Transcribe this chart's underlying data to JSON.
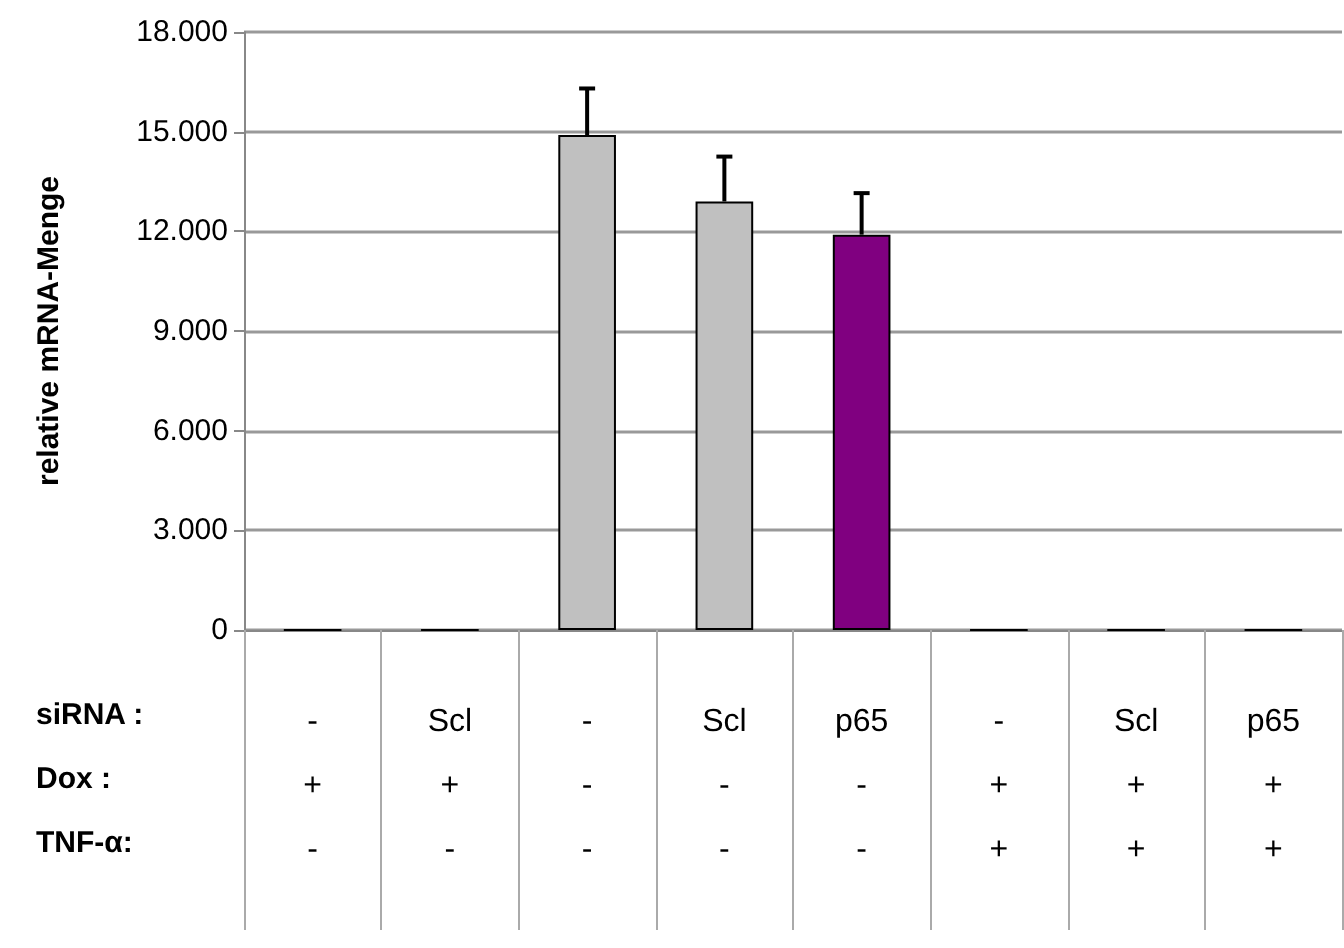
{
  "chart_data": {
    "type": "bar",
    "ylabel": "relative mRNA-Menge",
    "categories": [
      "-\n+\n-",
      "Scl\n+\n-",
      "-\n-\n-",
      "Scl\n-\n-",
      "p65\n-\n-",
      "-\n+\n+",
      "Scl\n+\n+",
      "p65\n+\n+"
    ],
    "values": [
      0,
      0,
      14900,
      12900,
      11900,
      0,
      0,
      0
    ],
    "errors": [
      null,
      null,
      1400,
      1350,
      1250,
      null,
      null,
      null
    ],
    "colors": [
      "#000000",
      "#000000",
      "#c0c0c0",
      "#c0c0c0",
      "#800080",
      "#000000",
      "#000000",
      "#000000"
    ],
    "ylim": [
      0,
      18000
    ],
    "yticks": [
      0,
      {
        "value": 3000,
        "label": "3.000"
      },
      {
        "value": 6000,
        "label": "6.000"
      },
      {
        "value": 9000,
        "label": "9.000"
      },
      {
        "value": 12000,
        "label": "12.000"
      },
      {
        "value": 15000,
        "label": "15.000"
      },
      {
        "value": 18000,
        "label": "18.000"
      }
    ],
    "annotations": [
      "siRNA :",
      "Dox :",
      "TNF-α:"
    ],
    "grid": "y"
  }
}
